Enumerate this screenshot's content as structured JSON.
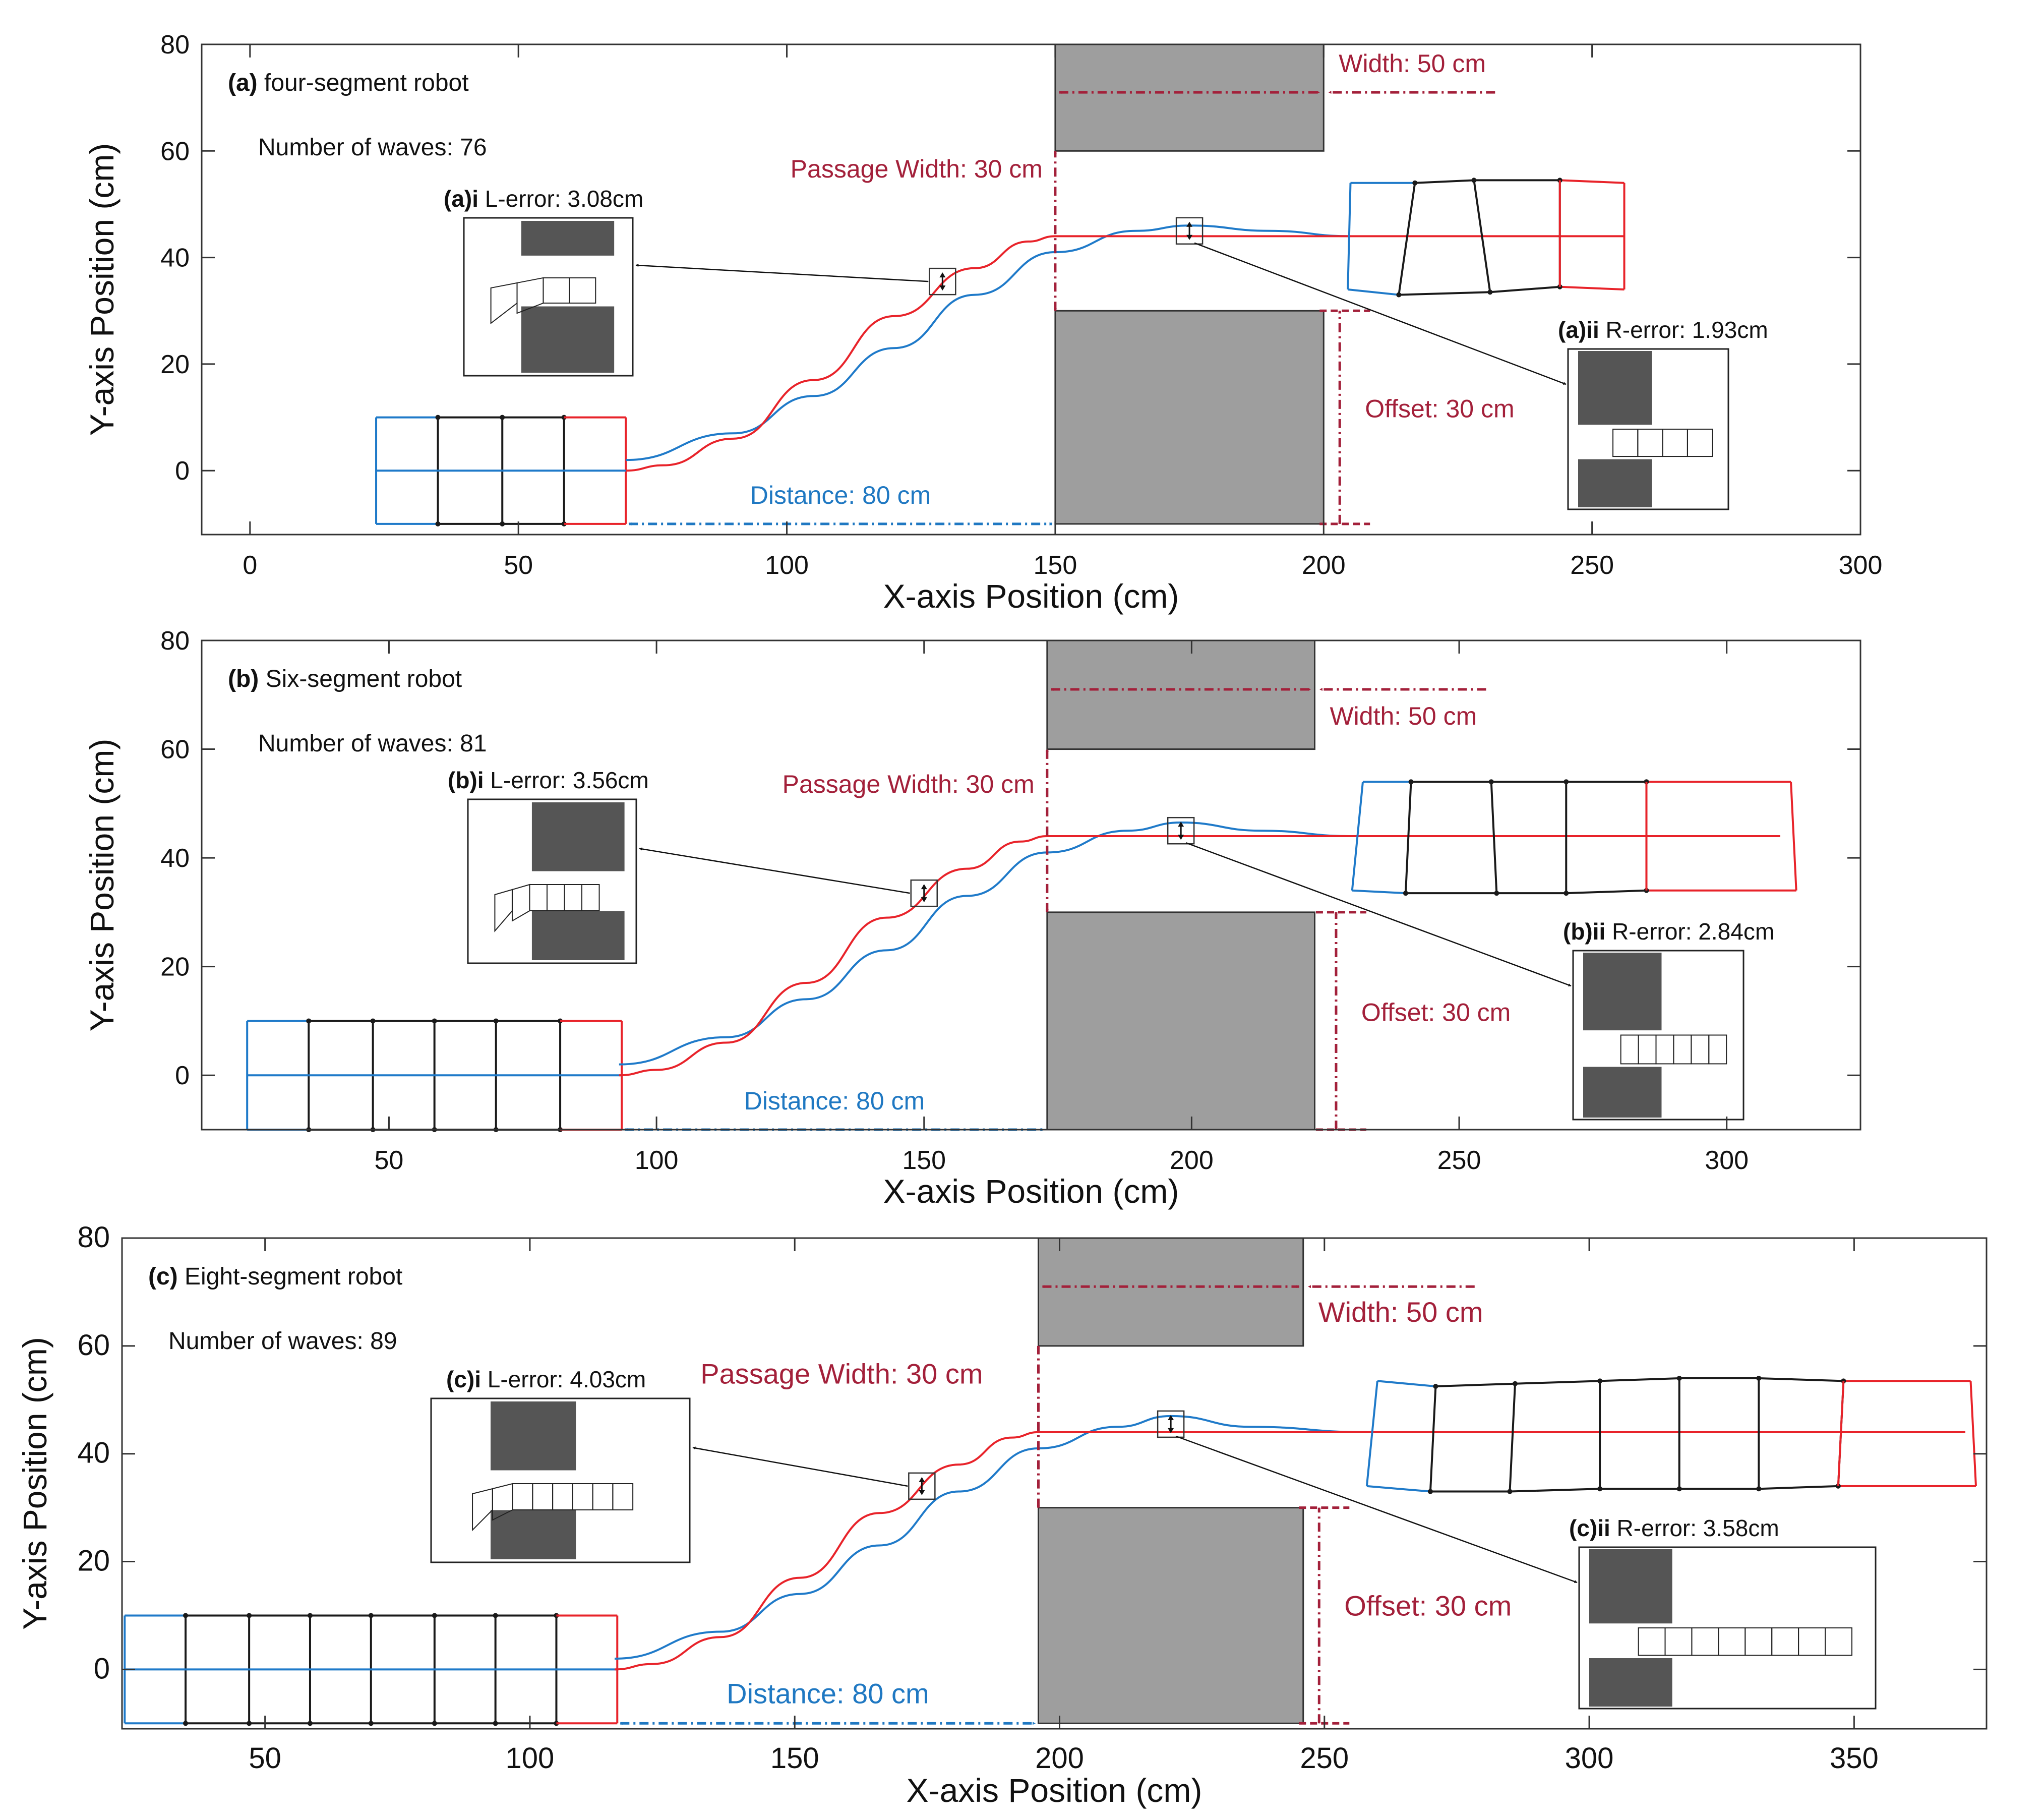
{
  "figure": {
    "colors": {
      "path_blue": "#1f7ac9",
      "path_red": "#e8232a",
      "robot_black": "#1a1a1a",
      "obstacle_gray": "#9e9e9e",
      "inset_obstacle": "#555555",
      "dim_red": "#a3203a",
      "distance_blue": "#1f78c2"
    }
  },
  "chart_data": [
    {
      "id": "a",
      "type": "line",
      "panel_label": "(a)",
      "title": "four-segment robot",
      "waves_label": "Number of waves:",
      "waves_value": "76",
      "xlabel": "X-axis Position (cm)",
      "ylabel": "Y-axis Position (cm)",
      "xlim": [
        -9,
        300
      ],
      "ylim": [
        -12,
        80
      ],
      "xticks": [
        0,
        50,
        100,
        150,
        200,
        250,
        300
      ],
      "yticks": [
        0,
        20,
        40,
        60,
        80
      ],
      "obstacles": [
        {
          "x": [
            150,
            200
          ],
          "y": [
            60,
            80
          ]
        },
        {
          "x": [
            150,
            200
          ],
          "y": [
            -10,
            30
          ]
        }
      ],
      "series": [
        {
          "color": "blue",
          "x": [
            70,
            90,
            105,
            120,
            135,
            150,
            165,
            175,
            190,
            205
          ],
          "y": [
            2,
            7,
            14,
            23,
            33,
            41,
            45,
            46,
            45,
            44
          ]
        },
        {
          "color": "red",
          "x": [
            70,
            77,
            90,
            105,
            120,
            135,
            145,
            150,
            160,
            256
          ],
          "y": [
            0,
            1,
            6,
            17,
            29,
            38,
            43,
            44,
            44,
            44
          ]
        }
      ],
      "robot_start": {
        "x_blue": 23.5,
        "x_black": [
          35,
          47,
          58.5
        ],
        "x_red_end": 70,
        "y_half": 10
      },
      "robot_end": {
        "x_blue": [
          205,
          204.5
        ],
        "black": [
          [
            217,
            54,
            214,
            33
          ],
          [
            228,
            54.5,
            231,
            33.5
          ],
          [
            244,
            54.5,
            244,
            34.5
          ]
        ],
        "x_red_end": [
          256,
          256
        ],
        "y_top": 54,
        "y_bot": 34
      },
      "l_error": {
        "label": "(a)i",
        "text": "L-error:",
        "value": "3.08cm",
        "point": [
          129,
          35.5
        ],
        "segments": 4
      },
      "r_error": {
        "label": "(a)ii",
        "text": "R-error:",
        "value": "1.93cm",
        "point": [
          175,
          45
        ]
      },
      "passage": {
        "label": "Passage Width: 30 cm",
        "x": 150,
        "y": [
          30,
          60
        ]
      },
      "width_dim": {
        "label": "Width: 50 cm",
        "x": [
          150,
          200
        ],
        "y": 71,
        "label_above": true
      },
      "offset_dim": {
        "label": "Offset: 30 cm",
        "x": 203,
        "y": [
          -10,
          30
        ]
      },
      "distance_dim": {
        "label": "Distance: 80 cm",
        "x": [
          70,
          150
        ],
        "y": -10
      }
    },
    {
      "id": "b",
      "type": "line",
      "panel_label": "(b)",
      "title": "Six-segment robot",
      "waves_label": "Number of waves:",
      "waves_value": "81",
      "xlabel": "X-axis Position (cm)",
      "ylabel": "Y-axis Position (cm)",
      "xlim": [
        15,
        325
      ],
      "ylim": [
        -10,
        80
      ],
      "xticks": [
        50,
        100,
        150,
        200,
        250,
        300
      ],
      "yticks": [
        0,
        20,
        40,
        60,
        80
      ],
      "obstacles": [
        {
          "x": [
            173,
            223
          ],
          "y": [
            60,
            80
          ]
        },
        {
          "x": [
            173,
            223
          ],
          "y": [
            -10,
            30
          ]
        }
      ],
      "series": [
        {
          "color": "blue",
          "x": [
            93,
            113,
            128,
            143,
            158,
            173,
            188,
            198,
            213,
            230
          ],
          "y": [
            2,
            7,
            14,
            23,
            33,
            41,
            45,
            46.5,
            45,
            44
          ]
        },
        {
          "color": "red",
          "x": [
            93,
            100,
            113,
            128,
            143,
            158,
            168,
            173,
            183,
            310
          ],
          "y": [
            0,
            1,
            6,
            17,
            29,
            38,
            43,
            44,
            44,
            44
          ]
        }
      ],
      "robot_start": {
        "x_blue": 23.5,
        "x_black": [
          35,
          47,
          58.5,
          70,
          82
        ],
        "x_red_end": 93.5,
        "y_half": 10
      },
      "robot_end": {
        "x_blue": [
          232,
          230
        ],
        "black": [
          [
            241,
            54,
            240,
            33.5
          ],
          [
            256,
            54,
            257,
            33.5
          ],
          [
            270,
            54,
            270,
            33.5
          ],
          [
            285,
            54,
            285,
            34
          ]
        ],
        "x_red_end": [
          312,
          313
        ],
        "y_top": 54,
        "y_bot": 34
      },
      "l_error": {
        "label": "(b)i",
        "text": "L-error:",
        "value": "3.56cm",
        "point": [
          150,
          33.5
        ],
        "segments": 6
      },
      "r_error": {
        "label": "(b)ii",
        "text": "R-error:",
        "value": "2.84cm",
        "point": [
          198,
          45
        ]
      },
      "passage": {
        "label": "Passage Width: 30 cm",
        "x": 173,
        "y": [
          30,
          60
        ]
      },
      "width_dim": {
        "label": "Width: 50 cm",
        "x": [
          173,
          223
        ],
        "y": 71,
        "label_above": false
      },
      "offset_dim": {
        "label": "Offset: 30 cm",
        "x": 227,
        "y": [
          -10,
          30
        ]
      },
      "distance_dim": {
        "label": "Distance: 80 cm",
        "x": [
          93.5,
          173
        ],
        "y": -10
      }
    },
    {
      "id": "c",
      "type": "line",
      "panel_label": "(c)",
      "title": "Eight-segment robot",
      "waves_label": "Number of waves:",
      "waves_value": "89",
      "xlabel": "X-axis Position (cm)",
      "ylabel": "Y-axis Position (cm)",
      "xlim": [
        23,
        375
      ],
      "ylim": [
        -11,
        80
      ],
      "xticks": [
        50,
        100,
        150,
        200,
        250,
        300,
        350
      ],
      "yticks": [
        0,
        20,
        40,
        60,
        80
      ],
      "obstacles": [
        {
          "x": [
            196,
            246
          ],
          "y": [
            60,
            80
          ]
        },
        {
          "x": [
            196,
            246
          ],
          "y": [
            -10,
            30
          ]
        }
      ],
      "series": [
        {
          "color": "blue",
          "x": [
            116,
            136,
            151,
            166,
            181,
            196,
            211,
            221,
            236,
            258
          ],
          "y": [
            2,
            7,
            14,
            23,
            33,
            41,
            45,
            47,
            45,
            44
          ]
        },
        {
          "color": "red",
          "x": [
            116,
            123,
            136,
            151,
            166,
            181,
            191,
            196,
            206,
            371
          ],
          "y": [
            0,
            1,
            6,
            17,
            29,
            38,
            43,
            44,
            44,
            44
          ]
        }
      ],
      "robot_start": {
        "x_blue": 23.5,
        "x_black": [
          35,
          47,
          58.5,
          70,
          82,
          93.5,
          105
        ],
        "x_red_end": 116.5,
        "y_half": 10
      },
      "robot_end": {
        "x_blue": [
          260,
          258
        ],
        "black": [
          [
            271,
            52.5,
            270,
            33
          ],
          [
            286,
            53,
            285,
            33
          ],
          [
            302,
            53.5,
            302,
            33.5
          ],
          [
            317,
            54,
            317,
            33.5
          ],
          [
            332,
            54,
            332,
            33.5
          ],
          [
            348,
            53.5,
            347,
            34
          ]
        ],
        "x_red_end": [
          372,
          373
        ],
        "y_top": 53.5,
        "y_bot": 34
      },
      "l_error": {
        "label": "(c)i",
        "text": "L-error:",
        "value": "4.03cm",
        "point": [
          174,
          34
        ],
        "segments": 8
      },
      "r_error": {
        "label": "(c)ii",
        "text": "R-error:",
        "value": "3.58cm",
        "point": [
          221,
          45.5
        ]
      },
      "passage": {
        "label": "Passage Width: 30 cm",
        "x": 196,
        "y": [
          30,
          60
        ]
      },
      "width_dim": {
        "label": "Width: 50 cm",
        "x": [
          196,
          246
        ],
        "y": 71,
        "label_above": false
      },
      "offset_dim": {
        "label": "Offset: 30 cm",
        "x": 249,
        "y": [
          -10,
          30
        ]
      },
      "distance_dim": {
        "label": "Distance: 80 cm",
        "x": [
          116.5,
          196
        ],
        "y": -10
      }
    }
  ]
}
